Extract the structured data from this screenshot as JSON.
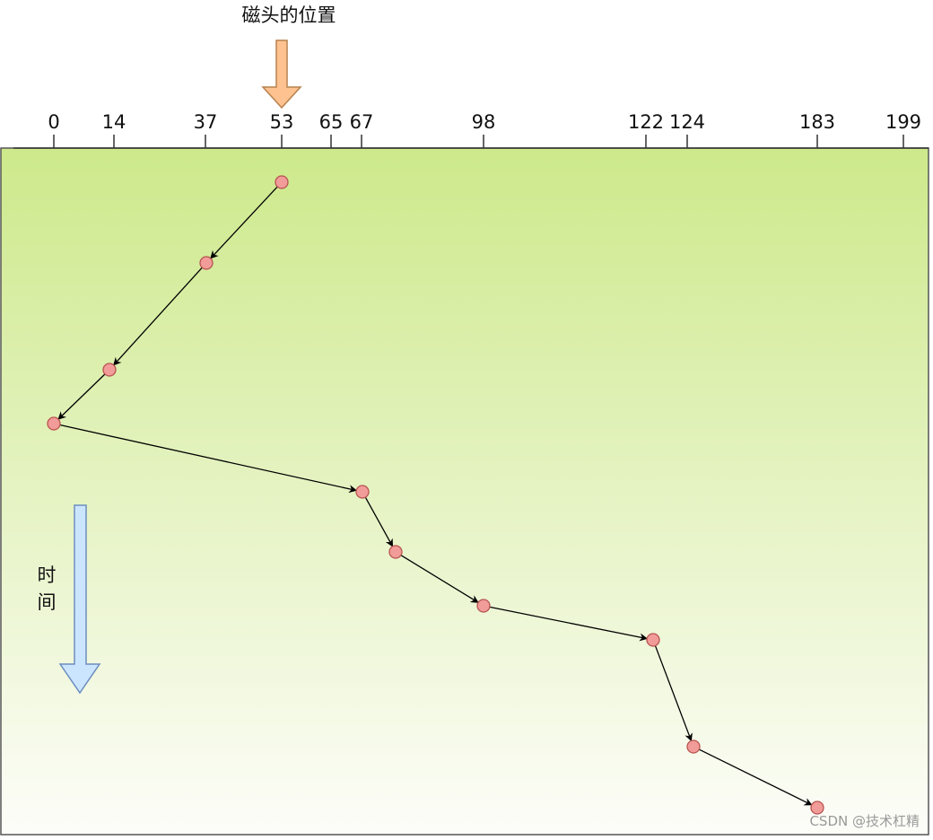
{
  "header": {
    "title": "磁头的位置"
  },
  "axis": {
    "ticks": [
      0,
      14,
      37,
      53,
      65,
      67,
      98,
      122,
      124,
      183,
      199
    ]
  },
  "time_label": [
    "时",
    "间"
  ],
  "watermark": "CSDN @技术杠精"
}
